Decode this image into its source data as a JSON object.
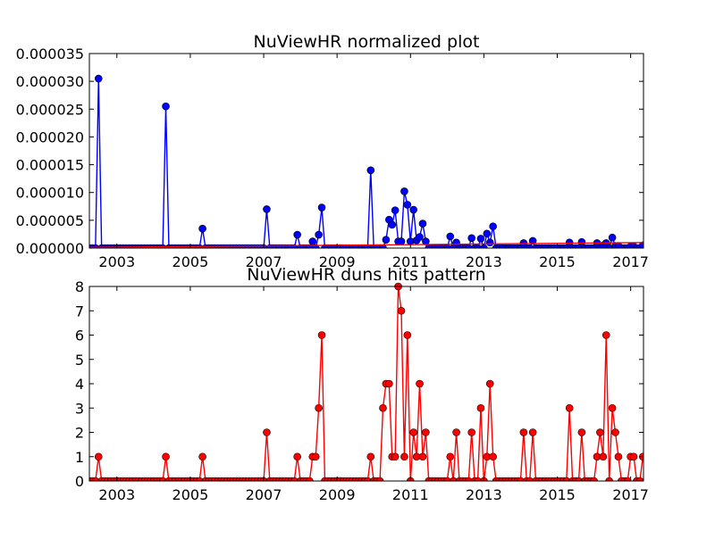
{
  "chart_data": [
    {
      "type": "line",
      "title": "NuViewHR normalized plot",
      "xlabel": "",
      "ylabel": "",
      "xlim": [
        2002.25,
        2017.35
      ],
      "ylim": [
        0,
        3.5e-05
      ],
      "xticks": [
        "2003",
        "2005",
        "2007",
        "2009",
        "2011",
        "2013",
        "2015",
        "2017"
      ],
      "yticks": [
        "0.000000",
        "0.000005",
        "0.000010",
        "0.000015",
        "0.000020",
        "0.000025",
        "0.000030",
        "0.000035"
      ],
      "grid": false,
      "series": [
        {
          "color": "#0000ff",
          "marker": "circle",
          "x": [
            2002.5,
            2004.33,
            2005.33,
            2007.08,
            2007.92,
            2008.33,
            2008.5,
            2008.58,
            2009.92,
            2010.33,
            2010.42,
            2010.5,
            2010.58,
            2010.67,
            2010.75,
            2010.83,
            2010.92,
            2011.0,
            2011.08,
            2011.17,
            2011.25,
            2011.33,
            2011.42,
            2012.08,
            2012.25,
            2012.67,
            2012.92,
            2013.08,
            2013.17,
            2013.25,
            2014.08,
            2014.33,
            2015.33,
            2015.67,
            2016.08,
            2016.25,
            2016.33,
            2016.5,
            2016.58,
            2016.67,
            2017.0,
            2017.08,
            2017.33
          ],
          "y": [
            3.05e-05,
            2.55e-05,
            3.5e-06,
            7e-06,
            2.4e-06,
            1.2e-06,
            2.4e-06,
            7.3e-06,
            1.4e-05,
            1.5e-06,
            5.1e-06,
            4.2e-06,
            6.8e-06,
            1.2e-06,
            1.2e-06,
            1.02e-05,
            7.8e-06,
            1.2e-06,
            6.9e-06,
            1.4e-06,
            2e-06,
            4.4e-06,
            1.2e-06,
            2.1e-06,
            1e-06,
            1.8e-06,
            1.7e-06,
            2.6e-06,
            1e-06,
            3.9e-06,
            9e-07,
            1.3e-06,
            1e-06,
            1.1e-06,
            9e-07,
            5e-07,
            9e-07,
            1.9e-06,
            4e-07,
            4e-07,
            3e-07,
            3e-07,
            5e-07
          ]
        },
        {
          "color": "#ff0000",
          "marker": "none",
          "x": [
            2002.25,
            2017.35
          ],
          "y": [
            1e-07,
            1e-06
          ]
        }
      ]
    },
    {
      "type": "line",
      "title": "NuViewHR duns hits pattern",
      "xlabel": "",
      "ylabel": "",
      "xlim": [
        2002.25,
        2017.35
      ],
      "ylim": [
        0,
        8
      ],
      "xticks": [
        "2003",
        "2005",
        "2007",
        "2009",
        "2011",
        "2013",
        "2015",
        "2017"
      ],
      "yticks": [
        "0",
        "1",
        "2",
        "3",
        "4",
        "5",
        "6",
        "7",
        "8"
      ],
      "grid": false,
      "series": [
        {
          "color": "#ff0000",
          "marker": "circle",
          "x": [
            2002.5,
            2004.33,
            2005.33,
            2007.08,
            2007.92,
            2008.33,
            2008.42,
            2008.5,
            2008.58,
            2009.92,
            2010.25,
            2010.33,
            2010.42,
            2010.5,
            2010.58,
            2010.67,
            2010.75,
            2010.83,
            2010.92,
            2011.08,
            2011.17,
            2011.25,
            2011.33,
            2011.42,
            2012.08,
            2012.25,
            2012.67,
            2012.92,
            2013.08,
            2013.17,
            2013.25,
            2014.08,
            2014.33,
            2015.33,
            2015.67,
            2016.08,
            2016.17,
            2016.25,
            2016.33,
            2016.5,
            2016.58,
            2016.67,
            2017.0,
            2017.08,
            2017.33
          ],
          "y": [
            1,
            1,
            1,
            2,
            1,
            1,
            1,
            3,
            6,
            1,
            3,
            4,
            4,
            1,
            1,
            8,
            7,
            1,
            6,
            2,
            1,
            4,
            1,
            2,
            1,
            2,
            2,
            3,
            1,
            4,
            1,
            2,
            2,
            3,
            2,
            1,
            2,
            1,
            6,
            3,
            2,
            1,
            1,
            1,
            1
          ]
        }
      ]
    }
  ]
}
